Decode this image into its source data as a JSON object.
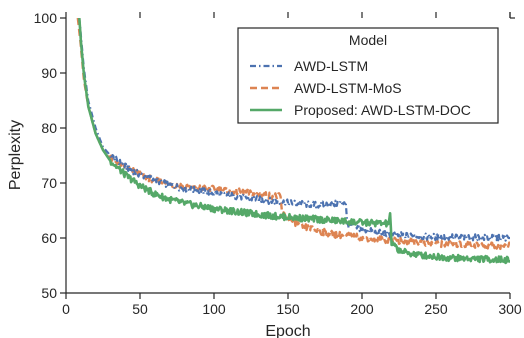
{
  "chart_data": {
    "type": "line",
    "title": "",
    "xlabel": "Epoch",
    "ylabel": "Perplexity",
    "xlim": [
      0,
      300
    ],
    "ylim": [
      50,
      100
    ],
    "x_ticks": [
      "0",
      "50",
      "100",
      "150",
      "200",
      "250",
      "300"
    ],
    "y_ticks": [
      "50",
      "60",
      "70",
      "80",
      "90",
      "100"
    ],
    "grid": false,
    "legend": {
      "title": "Model",
      "placement": "top-right"
    },
    "series": [
      {
        "name": "AWD-LSTM",
        "color": "#4c72b0",
        "linestyle": "dashdot",
        "points": [
          [
            9,
            100
          ],
          [
            10,
            97
          ],
          [
            12,
            91
          ],
          [
            15,
            85
          ],
          [
            20,
            80
          ],
          [
            25,
            76.5
          ],
          [
            30,
            75
          ],
          [
            40,
            73
          ],
          [
            50,
            71.5
          ],
          [
            60,
            70.6
          ],
          [
            70,
            69.6
          ],
          [
            80,
            69
          ],
          [
            90,
            68.6
          ],
          [
            100,
            68.2
          ],
          [
            110,
            67.8
          ],
          [
            120,
            67.4
          ],
          [
            130,
            67
          ],
          [
            140,
            66.7
          ],
          [
            150,
            66.4
          ],
          [
            160,
            66.2
          ],
          [
            170,
            66
          ],
          [
            180,
            66.1
          ],
          [
            189,
            66.6
          ],
          [
            190,
            62.5
          ],
          [
            200,
            61.6
          ],
          [
            210,
            61
          ],
          [
            220,
            60.6
          ],
          [
            230,
            60.4
          ],
          [
            240,
            60.3
          ],
          [
            250,
            60.2
          ],
          [
            260,
            60.15
          ],
          [
            270,
            60.1
          ],
          [
            280,
            60.05
          ],
          [
            290,
            60
          ],
          [
            300,
            60
          ]
        ]
      },
      {
        "name": "AWD-LSTM-MoS",
        "color": "#dd8452",
        "linestyle": "dashed",
        "points": [
          [
            8,
            100
          ],
          [
            10,
            95
          ],
          [
            12,
            89
          ],
          [
            15,
            84
          ],
          [
            20,
            79
          ],
          [
            25,
            76
          ],
          [
            30,
            74.5
          ],
          [
            40,
            73
          ],
          [
            50,
            71.5
          ],
          [
            60,
            70.5
          ],
          [
            70,
            69.8
          ],
          [
            80,
            69.4
          ],
          [
            90,
            69.1
          ],
          [
            100,
            68.9
          ],
          [
            110,
            68.6
          ],
          [
            120,
            68.3
          ],
          [
            130,
            67.9
          ],
          [
            140,
            67.7
          ],
          [
            145,
            67.5
          ],
          [
            146,
            64.5
          ],
          [
            150,
            63.5
          ],
          [
            160,
            62.1
          ],
          [
            170,
            61.3
          ],
          [
            180,
            60.7
          ],
          [
            190,
            60.4
          ],
          [
            200,
            60.1
          ],
          [
            210,
            59.8
          ],
          [
            220,
            59.6
          ],
          [
            230,
            59.4
          ],
          [
            240,
            59.2
          ],
          [
            250,
            59
          ],
          [
            260,
            58.9
          ],
          [
            270,
            58.8
          ],
          [
            280,
            58.7
          ],
          [
            290,
            58.6
          ],
          [
            300,
            58.6
          ]
        ]
      },
      {
        "name": "Proposed: AWD-LSTM-DOC",
        "color": "#55a868",
        "linestyle": "solid",
        "points": [
          [
            9,
            100
          ],
          [
            10,
            96
          ],
          [
            12,
            90
          ],
          [
            15,
            84
          ],
          [
            20,
            79
          ],
          [
            25,
            76
          ],
          [
            30,
            74
          ],
          [
            40,
            71.5
          ],
          [
            50,
            69.5
          ],
          [
            60,
            68
          ],
          [
            70,
            67
          ],
          [
            80,
            66.3
          ],
          [
            90,
            65.8
          ],
          [
            100,
            65.3
          ],
          [
            110,
            65
          ],
          [
            120,
            64.6
          ],
          [
            130,
            64.3
          ],
          [
            140,
            64
          ],
          [
            150,
            63.8
          ],
          [
            160,
            63.6
          ],
          [
            170,
            63.4
          ],
          [
            180,
            63.2
          ],
          [
            190,
            63
          ],
          [
            200,
            62.8
          ],
          [
            210,
            62.7
          ],
          [
            218,
            62.6
          ],
          [
            219,
            64.5
          ],
          [
            220,
            59
          ],
          [
            225,
            57.8
          ],
          [
            230,
            57.3
          ],
          [
            240,
            56.9
          ],
          [
            250,
            56.6
          ],
          [
            260,
            56.4
          ],
          [
            270,
            56.3
          ],
          [
            280,
            56.2
          ],
          [
            290,
            56.1
          ],
          [
            300,
            56
          ]
        ]
      }
    ]
  }
}
